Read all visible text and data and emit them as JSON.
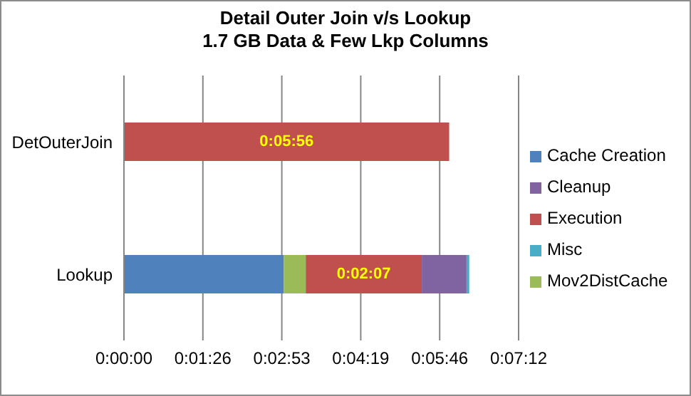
{
  "chart_data": {
    "type": "bar",
    "orientation": "horizontal",
    "stacked": true,
    "title": "Detail Outer Join v/s Lookup",
    "subtitle": "1.7 GB Data & Few Lkp Columns",
    "categories": [
      "DetOuterJoin",
      "Lookup"
    ],
    "series": [
      {
        "name": "Cache Creation",
        "color": "#4f81bd",
        "values": [
          null,
          175
        ]
      },
      {
        "name": "Mov2DistCache",
        "color": "#9bbb59",
        "values": [
          null,
          24
        ]
      },
      {
        "name": "Execution",
        "color": "#c0504d",
        "values": [
          356,
          127
        ],
        "value_labels": [
          "0:05:56",
          "0:02:07"
        ]
      },
      {
        "name": "Cleanup",
        "color": "#8064a2",
        "values": [
          null,
          49
        ]
      },
      {
        "name": "Misc",
        "color": "#4bacc6",
        "values": [
          null,
          3
        ]
      }
    ],
    "xlim": [
      0,
      432
    ],
    "xticks": [
      {
        "value": 0,
        "label": "0:00:00"
      },
      {
        "value": 86.4,
        "label": "0:01:26"
      },
      {
        "value": 172.8,
        "label": "0:02:53"
      },
      {
        "value": 259.2,
        "label": "0:04:19"
      },
      {
        "value": 345.6,
        "label": "0:05:46"
      },
      {
        "value": 432,
        "label": "0:07:12"
      }
    ],
    "grid": "x",
    "legend": "right"
  }
}
